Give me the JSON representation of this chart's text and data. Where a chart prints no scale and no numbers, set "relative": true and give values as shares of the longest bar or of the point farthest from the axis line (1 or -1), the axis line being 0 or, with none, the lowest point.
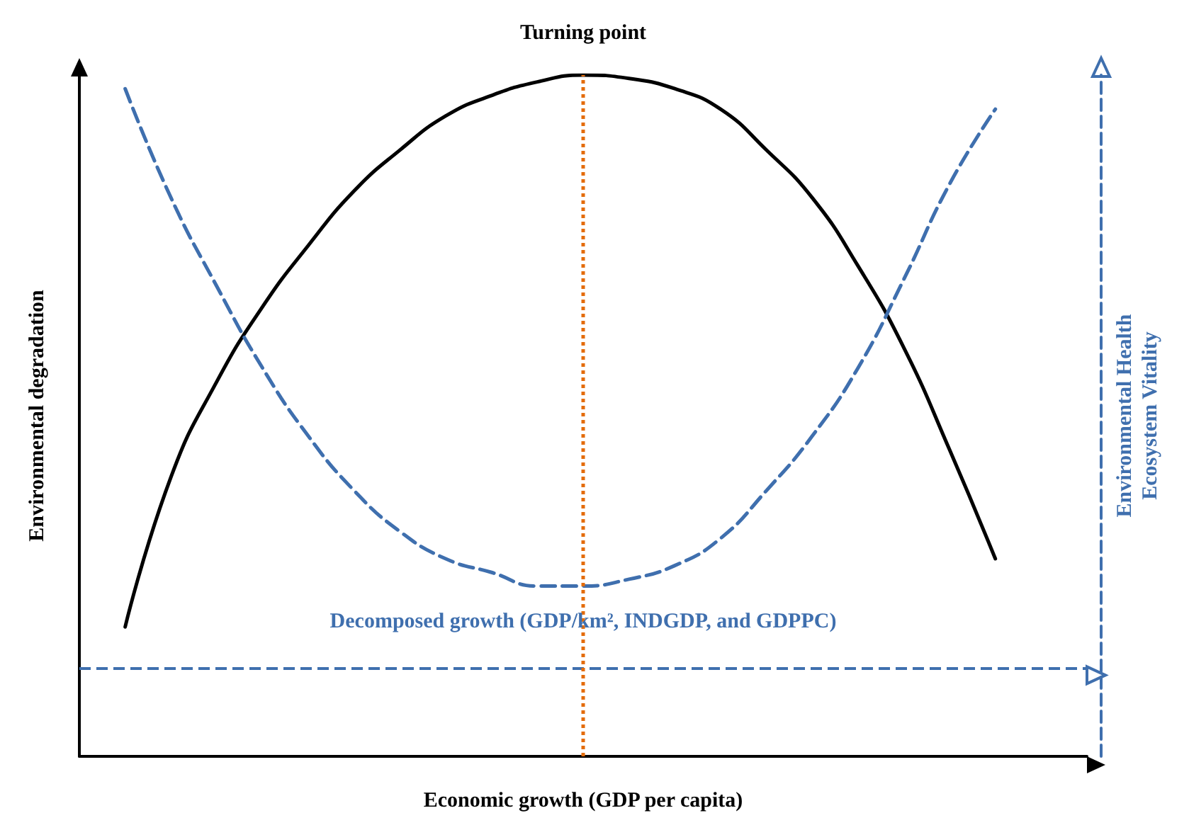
{
  "chart_data": {
    "type": "line",
    "relative": true,
    "xlabel": "Economic growth (GDP per capita)",
    "ylabel": "Environmental degradation",
    "y2label": "Environmental Health\nEcosystem Vitality",
    "categories": [
      null,
      null,
      null,
      null,
      null,
      null,
      null,
      null,
      null,
      null,
      null,
      null,
      null,
      null,
      null,
      null,
      null,
      null,
      null,
      null,
      null,
      null,
      null
    ],
    "series": [
      {
        "color": "#000000",
        "line_style": "solid",
        "values": [
          null,
          0.19,
          0.41,
          0.55,
          0.66,
          0.75,
          0.83,
          0.89,
          0.94,
          0.97,
          0.99,
          1,
          0.995,
          0.98,
          0.95,
          0.89,
          0.82,
          0.72,
          0.6,
          0.45,
          0.29,
          null,
          null
        ]
      },
      {
        "color": "#3f6fae",
        "line_style": "dashed",
        "values": [
          null,
          0.98,
          0.82,
          0.69,
          0.57,
          0.47,
          0.39,
          0.33,
          0.29,
          0.27,
          0.25,
          0.25,
          0.26,
          0.28,
          0.32,
          0.39,
          0.47,
          0.57,
          0.7,
          0.84,
          0.95,
          null,
          null
        ]
      }
    ],
    "annotations": [
      "Turning point"
    ],
    "ref_lines": [
      {
        "axis": "y",
        "value": 0.13,
        "label": "Decomposed growth (GDP/km², INDGDP, and GDPPC)",
        "color": "#3f6fae",
        "line_style": "dashed"
      }
    ],
    "marker": "none",
    "grid": false
  }
}
